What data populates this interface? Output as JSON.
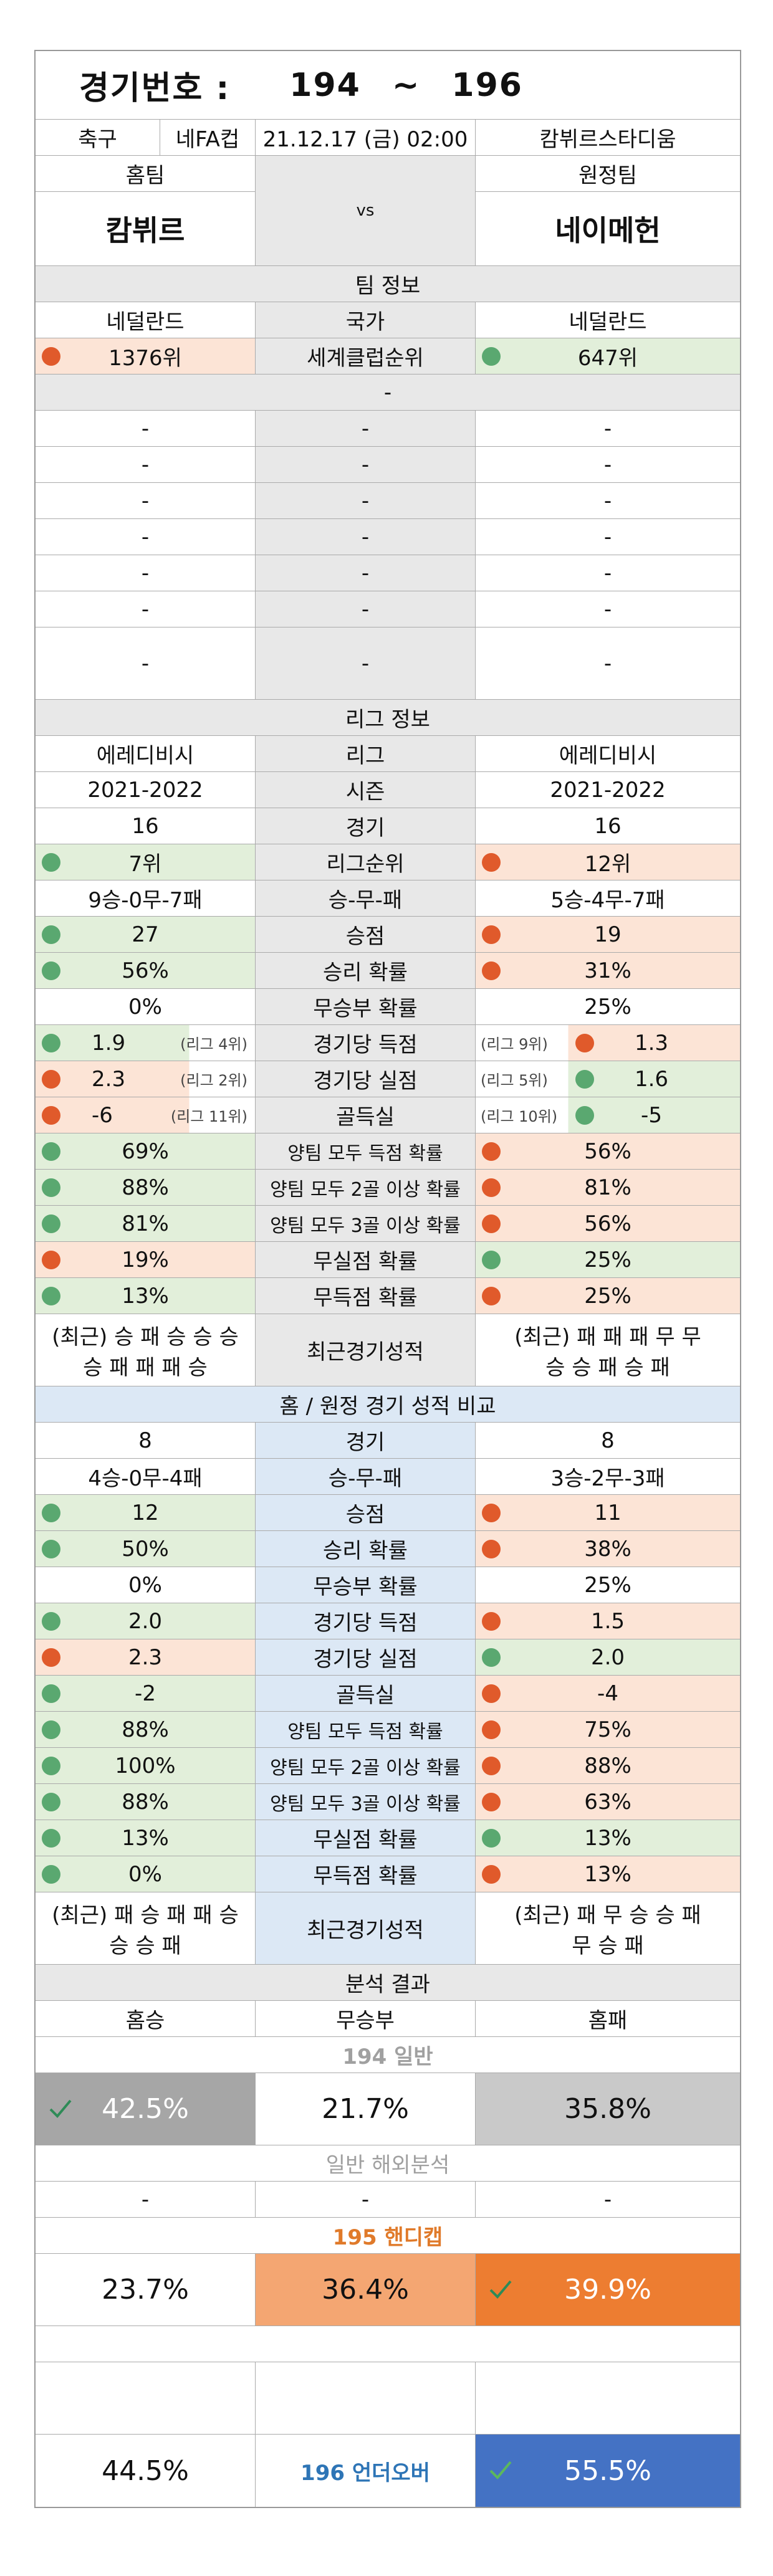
{
  "header": {
    "label": "경기번호 :",
    "num_from": "194",
    "tilde": "~",
    "num_to": "196"
  },
  "match": {
    "sport": "축구",
    "league": "네FA컵",
    "datetime": "21.12.17 (금) 02:00",
    "stadium": "캄뷔르스타디움"
  },
  "teams": {
    "home_label": "홈팀",
    "away_label": "원정팀",
    "home": "캄뷔르",
    "vs": "vs",
    "away": "네이메헌"
  },
  "team_info": {
    "title": "팀 정보",
    "country": {
      "home": "네덜란드",
      "label": "국가",
      "away": "네덜란드"
    },
    "rank": {
      "home": "1376위",
      "label": "세계클럽순위",
      "away": "647위"
    },
    "dash": "-"
  },
  "league_info": {
    "title": "리그 정보",
    "rows": [
      {
        "home": "에레디비시",
        "label": "리그",
        "away": "에레디비시"
      },
      {
        "home": "2021-2022",
        "label": "시즌",
        "away": "2021-2022"
      },
      {
        "home": "16",
        "label": "경기",
        "away": "16"
      },
      {
        "home": "7위",
        "label": "리그순위",
        "away": "12위",
        "hd": "g",
        "ad": "r"
      },
      {
        "home": "9승-0무-7패",
        "label": "승-무-패",
        "away": "5승-4무-7패"
      },
      {
        "home": "27",
        "label": "승점",
        "away": "19",
        "hd": "g",
        "ad": "r"
      },
      {
        "home": "56%",
        "label": "승리 확률",
        "away": "31%",
        "hd": "g",
        "ad": "r"
      },
      {
        "home": "0%",
        "label": "무승부 확률",
        "away": "25%"
      },
      {
        "home": "1.9",
        "hnote": "(리그 4위)",
        "label": "경기당 득점",
        "anote": "(리그 9위)",
        "away": "1.3",
        "hd": "g",
        "ad": "r"
      },
      {
        "home": "2.3",
        "hnote": "(리그 2위)",
        "label": "경기당 실점",
        "anote": "(리그 5위)",
        "away": "1.6",
        "hd": "r",
        "ad": "g"
      },
      {
        "home": "-6",
        "hnote": "(리그 11위)",
        "label": "골득실",
        "anote": "(리그 10위)",
        "away": "-5",
        "hd": "r",
        "ad": "g"
      },
      {
        "home": "69%",
        "label": "양팀 모두 득점 확률",
        "away": "56%",
        "hd": "g",
        "ad": "r"
      },
      {
        "home": "88%",
        "label": "양팀 모두 2골 이상 확률",
        "away": "81%",
        "hd": "g",
        "ad": "r"
      },
      {
        "home": "81%",
        "label": "양팀 모두 3골 이상 확률",
        "away": "56%",
        "hd": "g",
        "ad": "r"
      },
      {
        "home": "19%",
        "label": "무실점 확률",
        "away": "25%",
        "hd": "r",
        "ad": "g"
      },
      {
        "home": "13%",
        "label": "무득점 확률",
        "away": "25%",
        "hd": "g",
        "ad": "r"
      }
    ],
    "recent": {
      "home_l1": "(최근) 승 패 승 승 승",
      "home_l2": "승 패 패 패 승",
      "label": "최근경기성적",
      "away_l1": "(최근) 패 패 패 무 무",
      "away_l2": "승 승 패 승 패"
    }
  },
  "homeaway": {
    "title": "홈 / 원정 경기 성적 비교",
    "rows": [
      {
        "home": "8",
        "label": "경기",
        "away": "8"
      },
      {
        "home": "4승-0무-4패",
        "label": "승-무-패",
        "away": "3승-2무-3패"
      },
      {
        "home": "12",
        "label": "승점",
        "away": "11",
        "hd": "g",
        "ad": "r"
      },
      {
        "home": "50%",
        "label": "승리 확률",
        "away": "38%",
        "hd": "g",
        "ad": "r"
      },
      {
        "home": "0%",
        "label": "무승부 확률",
        "away": "25%"
      },
      {
        "home": "2.0",
        "label": "경기당 득점",
        "away": "1.5",
        "hd": "g",
        "ad": "r"
      },
      {
        "home": "2.3",
        "label": "경기당 실점",
        "away": "2.0",
        "hd": "r",
        "ad": "g"
      },
      {
        "home": "-2",
        "label": "골득실",
        "away": "-4",
        "hd": "g",
        "ad": "r"
      },
      {
        "home": "88%",
        "label": "양팀 모두 득점 확률",
        "away": "75%",
        "hd": "g",
        "ad": "r"
      },
      {
        "home": "100%",
        "label": "양팀 모두 2골 이상 확률",
        "away": "88%",
        "hd": "g",
        "ad": "r"
      },
      {
        "home": "88%",
        "label": "양팀 모두 3골 이상 확률",
        "away": "63%",
        "hd": "g",
        "ad": "r"
      },
      {
        "home": "13%",
        "label": "무실점 확률",
        "away": "13%",
        "hd": "g",
        "ad": "g"
      },
      {
        "home": "0%",
        "label": "무득점 확률",
        "away": "13%",
        "hd": "g",
        "ad": "r"
      }
    ],
    "recent": {
      "home_l1": "(최근) 패 승 패 패 승",
      "home_l2": "승 승 패",
      "label": "최근경기성적",
      "away_l1": "(최근) 패 무 승 승 패",
      "away_l2": "무 승 패"
    }
  },
  "analysis": {
    "title": "분석 결과",
    "cols": {
      "home": "홈승",
      "draw": "무승부",
      "away": "홈패"
    },
    "general_title": "194 일반",
    "general": {
      "home": "42.5%",
      "draw": "21.7%",
      "away": "35.8%"
    },
    "overseas_title": "일반 해외분석",
    "overseas": {
      "home": "-",
      "draw": "-",
      "away": "-"
    },
    "handicap_title": "195 핸디캡",
    "handicap": {
      "home": "23.7%",
      "draw": "36.4%",
      "away": "39.9%"
    },
    "underover_label": "196 언더오버",
    "underover": {
      "under": "44.5%",
      "over": "55.5%"
    }
  },
  "colors": {
    "green_bg": "#e2efda",
    "pink_bg": "#fce4d6",
    "gray_bg": "#e8e8e8",
    "blue_bg": "#dce8f5",
    "handicap_title": "#e07a2a",
    "underover_title": "#2e75b6",
    "over_cell": "#4472c4",
    "handicap_win": "#ed7d31",
    "handicap_mid": "#f4a672",
    "general_win": "#a6a6a6",
    "general_loss": "#c9c9c9"
  },
  "icons": {
    "check": "check-icon",
    "dot_green": "green-dot",
    "dot_red": "red-dot"
  }
}
